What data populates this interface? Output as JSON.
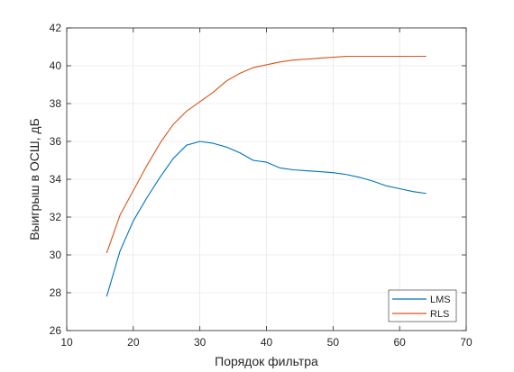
{
  "chart_data": {
    "type": "line",
    "xlabel": "Порядок фильтра",
    "ylabel": "Выигрыш в ОСШ, дБ",
    "xlim": [
      10,
      70
    ],
    "ylim": [
      26,
      42
    ],
    "xticks": [
      10,
      20,
      30,
      40,
      50,
      60,
      70
    ],
    "yticks": [
      26,
      28,
      30,
      32,
      34,
      36,
      38,
      40,
      42
    ],
    "grid": true,
    "legend": "bottom-right",
    "series": [
      {
        "name": "LMS",
        "color": "#0072bd",
        "x": [
          16,
          18,
          20,
          22,
          24,
          26,
          28,
          30,
          32,
          34,
          36,
          38,
          40,
          42,
          44,
          46,
          48,
          50,
          52,
          54,
          56,
          58,
          60,
          62,
          64
        ],
        "y": [
          27.8,
          30.2,
          31.8,
          33.0,
          34.1,
          35.1,
          35.8,
          36.0,
          35.9,
          35.7,
          35.4,
          35.0,
          34.9,
          34.6,
          34.5,
          34.45,
          34.4,
          34.35,
          34.25,
          34.1,
          33.9,
          33.65,
          33.5,
          33.35,
          33.25
        ]
      },
      {
        "name": "RLS",
        "color": "#d95319",
        "x": [
          16,
          18,
          20,
          22,
          24,
          26,
          28,
          30,
          32,
          34,
          36,
          38,
          40,
          42,
          44,
          46,
          48,
          50,
          52,
          54,
          56,
          58,
          60,
          62,
          64
        ],
        "y": [
          30.1,
          32.1,
          33.4,
          34.7,
          35.9,
          36.9,
          37.6,
          38.1,
          38.6,
          39.2,
          39.6,
          39.9,
          40.05,
          40.2,
          40.3,
          40.35,
          40.4,
          40.45,
          40.5,
          40.5,
          40.5,
          40.5,
          40.5,
          40.5,
          40.5
        ]
      }
    ]
  }
}
